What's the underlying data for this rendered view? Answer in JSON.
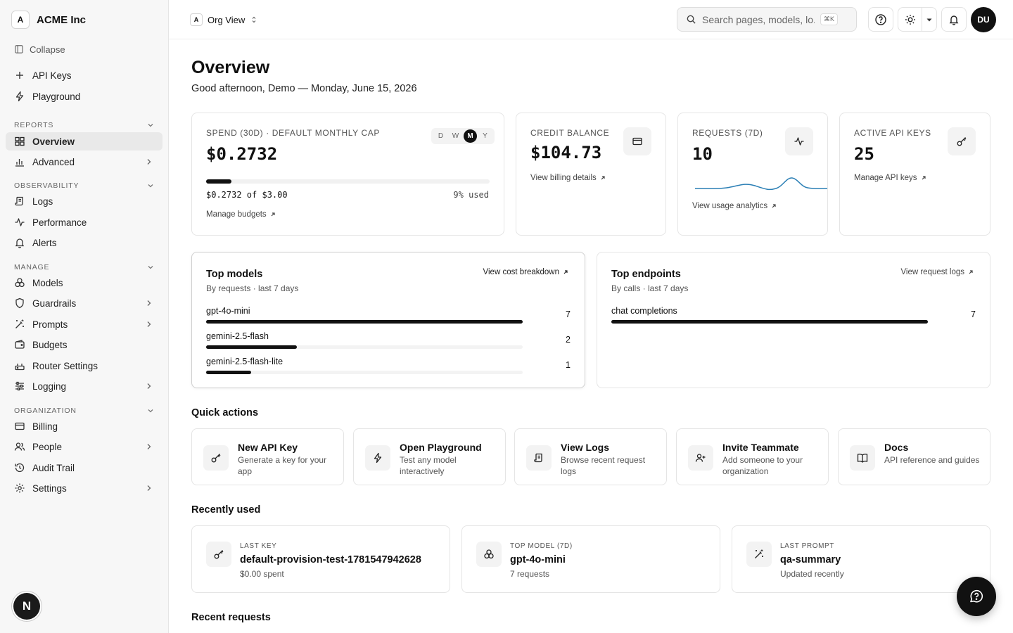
{
  "org": {
    "badge": "A",
    "name": "ACME Inc"
  },
  "sidebar": {
    "collapse_label": "Collapse",
    "top_items": [
      {
        "label": "API Keys",
        "icon": "plus-icon"
      },
      {
        "label": "Playground",
        "icon": "bolt-icon"
      }
    ],
    "sections": [
      {
        "title": "REPORTS",
        "items": [
          {
            "label": "Overview",
            "icon": "grid-icon",
            "active": true
          },
          {
            "label": "Advanced",
            "icon": "chart-icon",
            "expandable": true
          }
        ]
      },
      {
        "title": "OBSERVABILITY",
        "items": [
          {
            "label": "Logs",
            "icon": "scroll-icon"
          },
          {
            "label": "Performance",
            "icon": "activity-icon"
          },
          {
            "label": "Alerts",
            "icon": "bell-icon"
          }
        ]
      },
      {
        "title": "MANAGE",
        "items": [
          {
            "label": "Models",
            "icon": "cubes-icon"
          },
          {
            "label": "Guardrails",
            "icon": "shield-icon",
            "expandable": true
          },
          {
            "label": "Prompts",
            "icon": "wand-icon",
            "expandable": true
          },
          {
            "label": "Budgets",
            "icon": "wallet-icon"
          },
          {
            "label": "Router Settings",
            "icon": "router-icon"
          },
          {
            "label": "Logging",
            "icon": "sliders-icon",
            "expandable": true
          }
        ]
      },
      {
        "title": "ORGANIZATION",
        "items": [
          {
            "label": "Billing",
            "icon": "card-icon"
          },
          {
            "label": "People",
            "icon": "users-icon",
            "expandable": true
          },
          {
            "label": "Audit Trail",
            "icon": "history-icon"
          },
          {
            "label": "Settings",
            "icon": "gear-icon",
            "expandable": true
          }
        ]
      }
    ],
    "user_initial": "N"
  },
  "header": {
    "org_view_badge": "A",
    "org_view_label": "Org View",
    "search_placeholder": "Search pages, models, lo...",
    "search_shortcut": "⌘K",
    "avatar_initials": "DU"
  },
  "page": {
    "title": "Overview",
    "greeting": "Good afternoon, Demo — Monday, June 15, 2026"
  },
  "spend": {
    "label": "SPEND (30D) · DEFAULT MONTHLY CAP",
    "value": "$0.2732",
    "progress_text": "$0.2732 of $3.00",
    "used_text": "9% used",
    "used_fraction": 0.09,
    "link": "Manage budgets",
    "ranges": [
      "D",
      "W",
      "M",
      "Y"
    ],
    "active_range": "M"
  },
  "credit": {
    "label": "CREDIT BALANCE",
    "value": "$104.73",
    "link": "View billing details"
  },
  "requests": {
    "label": "REQUESTS (7D)",
    "value": "10",
    "link": "View usage analytics"
  },
  "keys": {
    "label": "ACTIVE API KEYS",
    "value": "25",
    "link": "Manage API keys"
  },
  "top_models": {
    "title": "Top models",
    "subtitle": "By requests · last 7 days",
    "link": "View cost breakdown",
    "rows": [
      {
        "name": "gpt-4o-mini",
        "count": 7
      },
      {
        "name": "gemini-2.5-flash",
        "count": 2
      },
      {
        "name": "gemini-2.5-flash-lite",
        "count": 1
      }
    ]
  },
  "top_endpoints": {
    "title": "Top endpoints",
    "subtitle": "By calls · last 7 days",
    "link": "View request logs",
    "rows": [
      {
        "name": "chat completions",
        "count": 7
      }
    ]
  },
  "quick_actions": {
    "title": "Quick actions",
    "items": [
      {
        "title": "New API Key",
        "desc": "Generate a key for your app",
        "icon": "key-icon"
      },
      {
        "title": "Open Playground",
        "desc": "Test any model interactively",
        "icon": "bolt-icon"
      },
      {
        "title": "View Logs",
        "desc": "Browse recent request logs",
        "icon": "scroll-icon"
      },
      {
        "title": "Invite Teammate",
        "desc": "Add someone to your organization",
        "icon": "user-plus-icon"
      },
      {
        "title": "Docs",
        "desc": "API reference and guides",
        "icon": "book-icon"
      }
    ]
  },
  "recently_used": {
    "title": "Recently used",
    "items": [
      {
        "label": "LAST KEY",
        "title": "default-provision-test-1781547942628",
        "sub": "$0.00 spent",
        "icon": "key-icon"
      },
      {
        "label": "TOP MODEL (7D)",
        "title": "gpt-4o-mini",
        "sub": "7 requests",
        "icon": "cubes-icon"
      },
      {
        "label": "LAST PROMPT",
        "title": "qa-summary",
        "sub": "Updated recently",
        "icon": "wand-icon"
      }
    ]
  },
  "recent_requests": {
    "title": "Recent requests"
  },
  "colors": {
    "accent": "#111111",
    "sparkline": "#2b7fb5",
    "sidebar_bg": "#f7f7f7"
  }
}
